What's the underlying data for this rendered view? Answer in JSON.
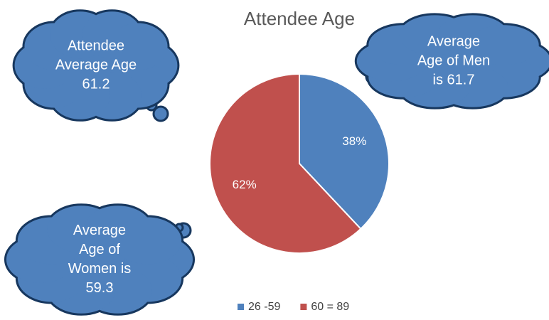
{
  "chart_data": {
    "type": "pie",
    "title": "Attendee Age",
    "categories": [
      "26 -59",
      "60 = 89"
    ],
    "values": [
      38,
      62
    ],
    "value_labels": [
      "38%",
      "62%"
    ],
    "colors": [
      "#4f81bd",
      "#c0504d"
    ],
    "legend": "bottom",
    "annotations": [
      [
        "Attendee",
        "Average Age",
        "61.2"
      ],
      [
        "Average",
        "Age of Men",
        "is 61.7"
      ],
      [
        "Average",
        "Age of",
        "Women is",
        "59.3"
      ]
    ]
  }
}
